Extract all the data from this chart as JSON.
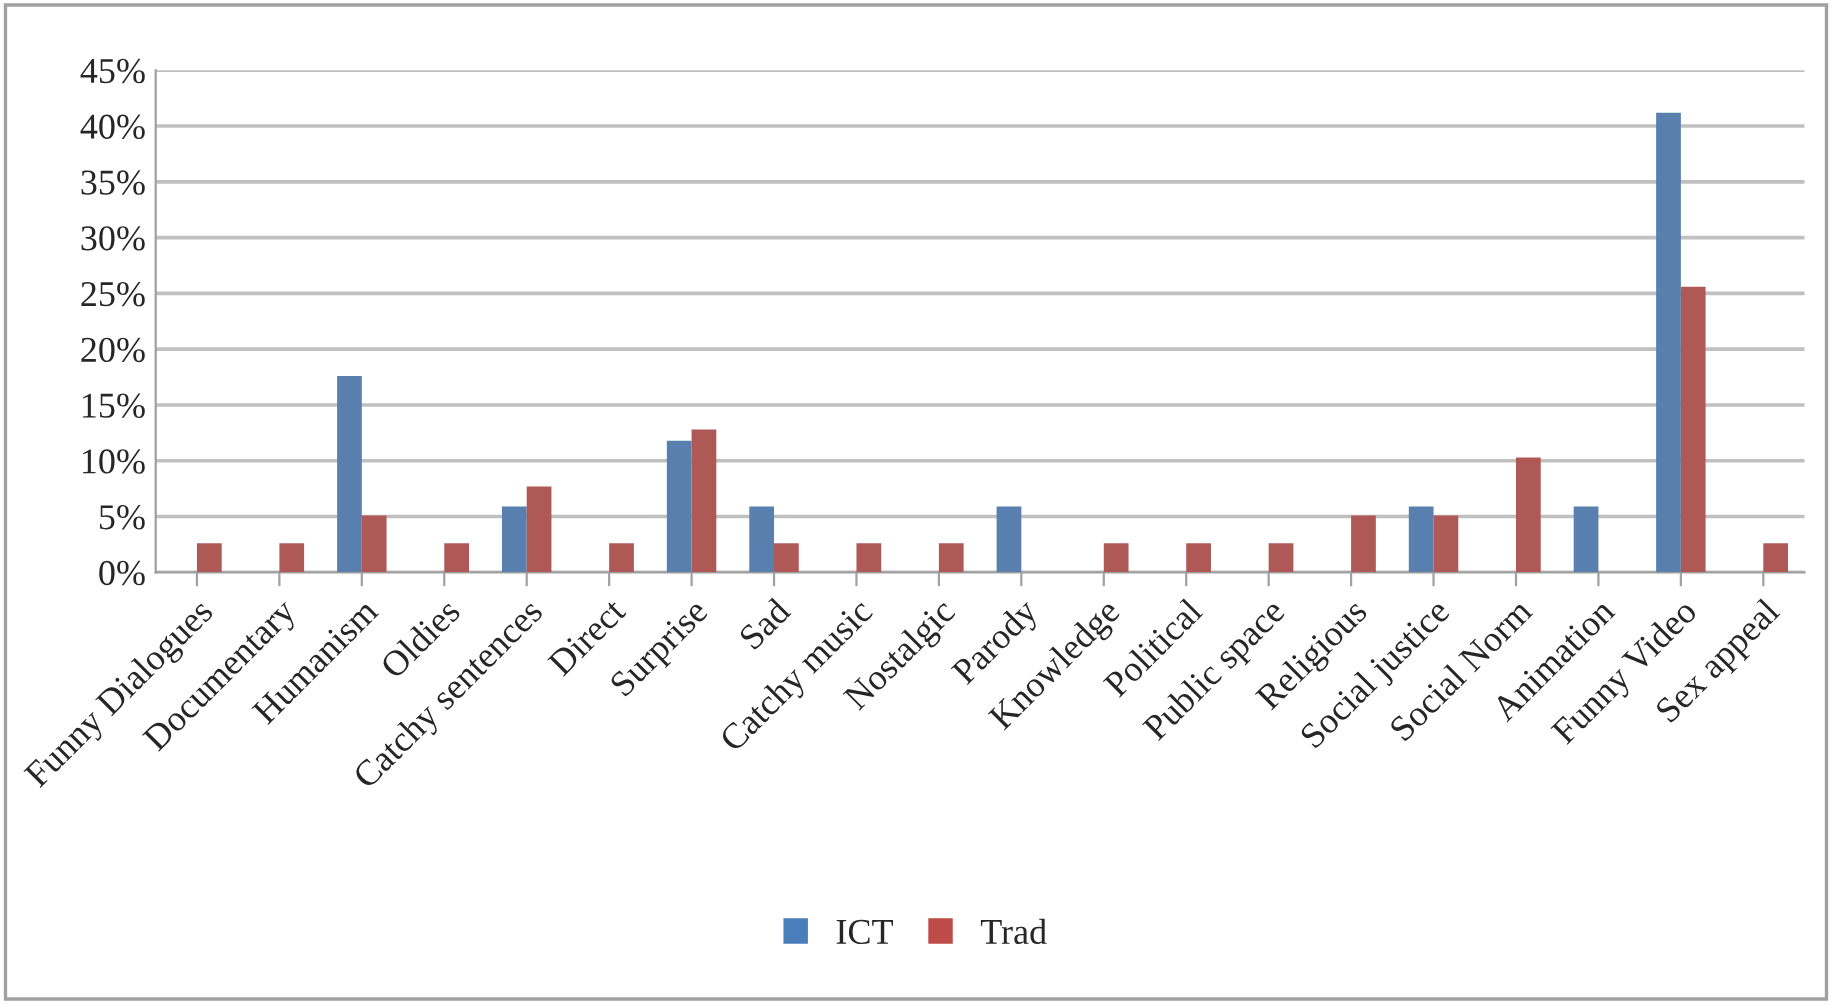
{
  "chart_data": {
    "type": "bar",
    "categories": [
      "Funny Dialogues",
      "Documentary",
      "Humanism",
      "Oldies",
      "Catchy sentences",
      "Direct",
      "Surprise",
      "Sad",
      "Catchy music",
      "Nostalgic",
      "Parody",
      "Knowledge",
      "Political",
      "Public space",
      "Religious",
      "Social justice",
      "Social Norm",
      "Animation",
      "Funny Video",
      "Sex appeal"
    ],
    "series": [
      {
        "name": "ICT",
        "color": "#4a7ebb",
        "values": [
          null,
          null,
          17.6,
          null,
          5.9,
          null,
          11.8,
          5.9,
          null,
          null,
          5.9,
          null,
          null,
          null,
          null,
          5.9,
          null,
          5.9,
          41.2,
          null
        ]
      },
      {
        "name": "Trad",
        "color": "#be4b48",
        "values": [
          2.6,
          2.6,
          5.1,
          2.6,
          7.7,
          2.6,
          12.8,
          2.6,
          2.6,
          2.6,
          null,
          2.6,
          2.6,
          2.6,
          5.1,
          5.1,
          10.3,
          null,
          25.6,
          2.6
        ]
      }
    ],
    "ylim": [
      0,
      45
    ],
    "yticks": [
      {
        "value": 0,
        "label": "0%"
      },
      {
        "value": 5,
        "label": "5%"
      },
      {
        "value": 10,
        "label": "10%"
      },
      {
        "value": 15,
        "label": "15%"
      },
      {
        "value": 20,
        "label": "20%"
      },
      {
        "value": 25,
        "label": "25%"
      },
      {
        "value": 30,
        "label": "30%"
      },
      {
        "value": 35,
        "label": "35%"
      },
      {
        "value": 40,
        "label": "40%"
      },
      {
        "value": 45,
        "label": "45%"
      }
    ],
    "grid": "y",
    "legend": "bottom"
  }
}
